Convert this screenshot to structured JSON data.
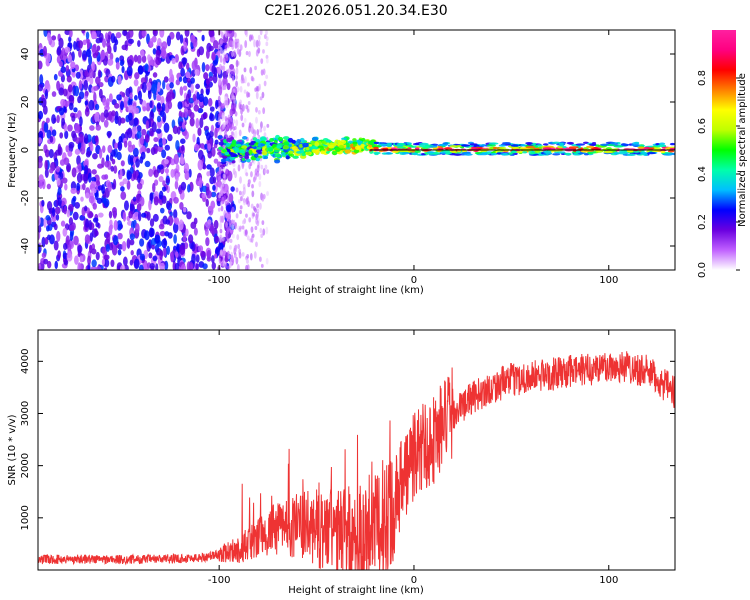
{
  "title": "C2E1.2026.051.20.34.E30",
  "chart_data": [
    {
      "type": "heatmap",
      "xlabel": "Height of straight line (km)",
      "ylabel": "Frequency (Hz)",
      "xlim": [
        -193,
        134
      ],
      "ylim": [
        -50,
        50
      ],
      "xticks": [
        -100,
        0,
        100
      ],
      "yticks": [
        -40,
        -20,
        0,
        20,
        40
      ],
      "colorbar": {
        "label": "Normalized spectral amplitude",
        "range": [
          0,
          1
        ],
        "ticks": [
          "0.0",
          "0.2",
          "0.4",
          "0.6",
          "0.8"
        ],
        "colors": [
          "#ffffff",
          "#c060ff",
          "#6a00e0",
          "#0000ff",
          "#00bfff",
          "#00ffaa",
          "#00ff00",
          "#bfff00",
          "#ffff00",
          "#ff8000",
          "#ff0000",
          "#ff0080",
          "#ff20a0"
        ]
      },
      "regions": [
        {
          "x_range": [
            -193,
            -100
          ],
          "freq_range": [
            -50,
            50
          ],
          "amplitude": 0.2
        },
        {
          "x_range": [
            -100,
            -75
          ],
          "freq_range": [
            -50,
            50
          ],
          "amplitude": 0.05
        },
        {
          "x_range": [
            -100,
            -20
          ],
          "freq_range": [
            -8,
            8
          ],
          "amplitude": 0.4
        },
        {
          "x_range": [
            -20,
            134
          ],
          "freq_range": [
            -2,
            3
          ],
          "amplitude": 0.8
        }
      ]
    },
    {
      "type": "line",
      "xlabel": "Height of straight line (km)",
      "ylabel": "SNR (10 * v/v)",
      "xlim": [
        -193,
        134
      ],
      "ylim": [
        0,
        4600
      ],
      "xticks": [
        -100,
        0,
        100
      ],
      "yticks": [
        1000,
        2000,
        3000,
        4000
      ],
      "color": "#ee3333",
      "series": [
        {
          "x": [
            -193,
            -170,
            -150,
            -130,
            -110,
            -100,
            -90,
            -80,
            -70,
            -60,
            -50,
            -40,
            -30,
            -20,
            -10,
            0,
            5,
            10,
            15,
            20,
            30,
            40,
            50,
            60,
            70,
            80,
            90,
            100,
            110,
            120,
            130,
            134
          ],
          "values": [
            200,
            210,
            200,
            210,
            230,
            300,
            400,
            600,
            800,
            850,
            800,
            700,
            650,
            700,
            1400,
            2200,
            2400,
            2500,
            2800,
            3000,
            3300,
            3500,
            3650,
            3700,
            3750,
            3800,
            3850,
            3900,
            3900,
            3800,
            3500,
            3400
          ]
        }
      ]
    }
  ]
}
